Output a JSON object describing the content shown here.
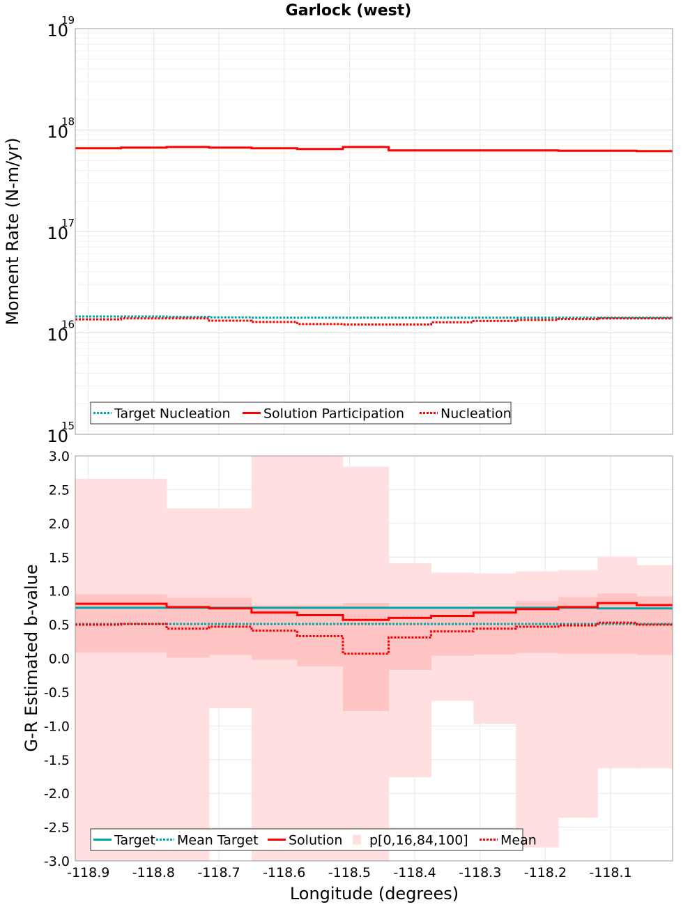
{
  "title": "Garlock (west)",
  "xlabel": "Longitude (degrees)",
  "colors": {
    "solution": "#ff0000",
    "target": "#00a6a6",
    "band_outer": "#ffdfdf",
    "band_inner": "#ffc4c4",
    "grid": "#e6e6e6"
  },
  "chart_data": [
    {
      "type": "line",
      "subtype": "step",
      "title": "Garlock (west)",
      "ylabel": "Moment Rate (N-m/yr)",
      "xlim": [
        -118.92,
        -118.005
      ],
      "ylim": [
        1000000000000000.0,
        1e+19
      ],
      "yscale": "log",
      "yticks": [
        {
          "base": "10",
          "exp": "15",
          "value": 1000000000000000.0
        },
        {
          "base": "10",
          "exp": "16",
          "value": 1e+16
        },
        {
          "base": "10",
          "exp": "17",
          "value": 1e+17
        },
        {
          "base": "10",
          "exp": "18",
          "value": 1e+18
        },
        {
          "base": "10",
          "exp": "19",
          "value": 1e+19
        }
      ],
      "grid": true,
      "legend_position": "bottom-left",
      "legend": [
        "Target Nucleation",
        "Solution Participation",
        "Nucleation"
      ],
      "bin_edges": [
        -118.92,
        -118.85,
        -118.78,
        -118.715,
        -118.65,
        -118.58,
        -118.51,
        -118.44,
        -118.375,
        -118.31,
        -118.245,
        -118.18,
        -118.12,
        -118.06,
        -118.005
      ],
      "series": [
        {
          "name": "Target Nucleation",
          "style": "dotted",
          "color": "#00a6a6",
          "values": [
            1.45e+16,
            1.45e+16,
            1.44e+16,
            1.42e+16,
            1.41e+16,
            1.41e+16,
            1.41e+16,
            1.41e+16,
            1.41e+16,
            1.41e+16,
            1.41e+16,
            1.41e+16,
            1.41e+16,
            1.41e+16
          ]
        },
        {
          "name": "Solution Participation",
          "style": "solid",
          "color": "#ff0000",
          "values": [
            6.6e+17,
            6.7e+17,
            6.8e+17,
            6.7e+17,
            6.6e+17,
            6.5e+17,
            6.8e+17,
            6.3e+17,
            6.3e+17,
            6.3e+17,
            6.3e+17,
            6.25e+17,
            6.25e+17,
            6.2e+17
          ]
        },
        {
          "name": "Nucleation",
          "style": "dotted",
          "color": "#ff0000",
          "values": [
            1.36e+16,
            1.39e+16,
            1.39e+16,
            1.32e+16,
            1.28e+16,
            1.22e+16,
            1.21e+16,
            1.21e+16,
            1.27e+16,
            1.31e+16,
            1.34e+16,
            1.37e+16,
            1.39e+16,
            1.39e+16
          ]
        }
      ]
    },
    {
      "type": "line",
      "subtype": "step",
      "ylabel": "G-R Estimated b-value",
      "xlabel": "Longitude (degrees)",
      "xlim": [
        -118.92,
        -118.005
      ],
      "ylim": [
        -3.0,
        3.0
      ],
      "yticks": [
        "3.0",
        "2.5",
        "2.0",
        "1.5",
        "1.0",
        "0.5",
        "0.0",
        "-0.5",
        "-1.0",
        "-1.5",
        "-2.0",
        "-2.5",
        "-3.0"
      ],
      "xticks": [
        "-118.9",
        "-118.8",
        "-118.7",
        "-118.6",
        "-118.5",
        "-118.4",
        "-118.3",
        "-118.2",
        "-118.1"
      ],
      "grid": true,
      "legend_position": "bottom-left",
      "legend": [
        "Target",
        "Mean Target",
        "Solution",
        "p[0,16,84,100]",
        "Mean"
      ],
      "bin_edges": [
        -118.92,
        -118.85,
        -118.78,
        -118.715,
        -118.65,
        -118.58,
        -118.51,
        -118.44,
        -118.375,
        -118.31,
        -118.245,
        -118.18,
        -118.12,
        -118.06,
        -118.005
      ],
      "bands": {
        "name": "p[0,16,84,100]",
        "p0": [
          -3.0,
          -3.0,
          -3.0,
          -0.74,
          -3.0,
          -3.0,
          -3.0,
          -1.76,
          -0.63,
          -0.97,
          -2.8,
          -2.36,
          -1.63,
          -1.63
        ],
        "p16": [
          0.09,
          0.09,
          0.01,
          0.05,
          -0.02,
          -0.12,
          -0.78,
          -0.17,
          0.04,
          0.06,
          0.08,
          0.07,
          0.07,
          0.05
        ],
        "p84": [
          0.95,
          0.95,
          0.9,
          0.9,
          0.79,
          0.79,
          0.82,
          0.75,
          0.75,
          0.75,
          0.85,
          0.91,
          0.96,
          0.92
        ],
        "p100": [
          2.66,
          2.66,
          2.22,
          2.22,
          3.0,
          3.0,
          2.84,
          1.41,
          1.27,
          1.26,
          1.29,
          1.31,
          1.51,
          1.38
        ]
      },
      "series": [
        {
          "name": "Target",
          "style": "solid",
          "color": "#00a6a6",
          "values": [
            0.75,
            0.75,
            0.75,
            0.75,
            0.75,
            0.75,
            0.75,
            0.75,
            0.75,
            0.75,
            0.75,
            0.75,
            0.74,
            0.74
          ]
        },
        {
          "name": "Mean Target",
          "style": "dotted",
          "color": "#00a6a6",
          "values": [
            0.51,
            0.51,
            0.51,
            0.51,
            0.51,
            0.51,
            0.51,
            0.51,
            0.51,
            0.51,
            0.51,
            0.51,
            0.51,
            0.51
          ]
        },
        {
          "name": "Solution",
          "style": "solid",
          "color": "#ff0000",
          "values": [
            0.81,
            0.81,
            0.76,
            0.74,
            0.68,
            0.64,
            0.57,
            0.6,
            0.63,
            0.68,
            0.73,
            0.76,
            0.82,
            0.79
          ]
        },
        {
          "name": "Mean",
          "style": "dotted",
          "color": "#ff0000",
          "values": [
            0.5,
            0.51,
            0.44,
            0.47,
            0.41,
            0.33,
            0.07,
            0.31,
            0.4,
            0.44,
            0.47,
            0.49,
            0.53,
            0.5
          ]
        }
      ]
    }
  ]
}
